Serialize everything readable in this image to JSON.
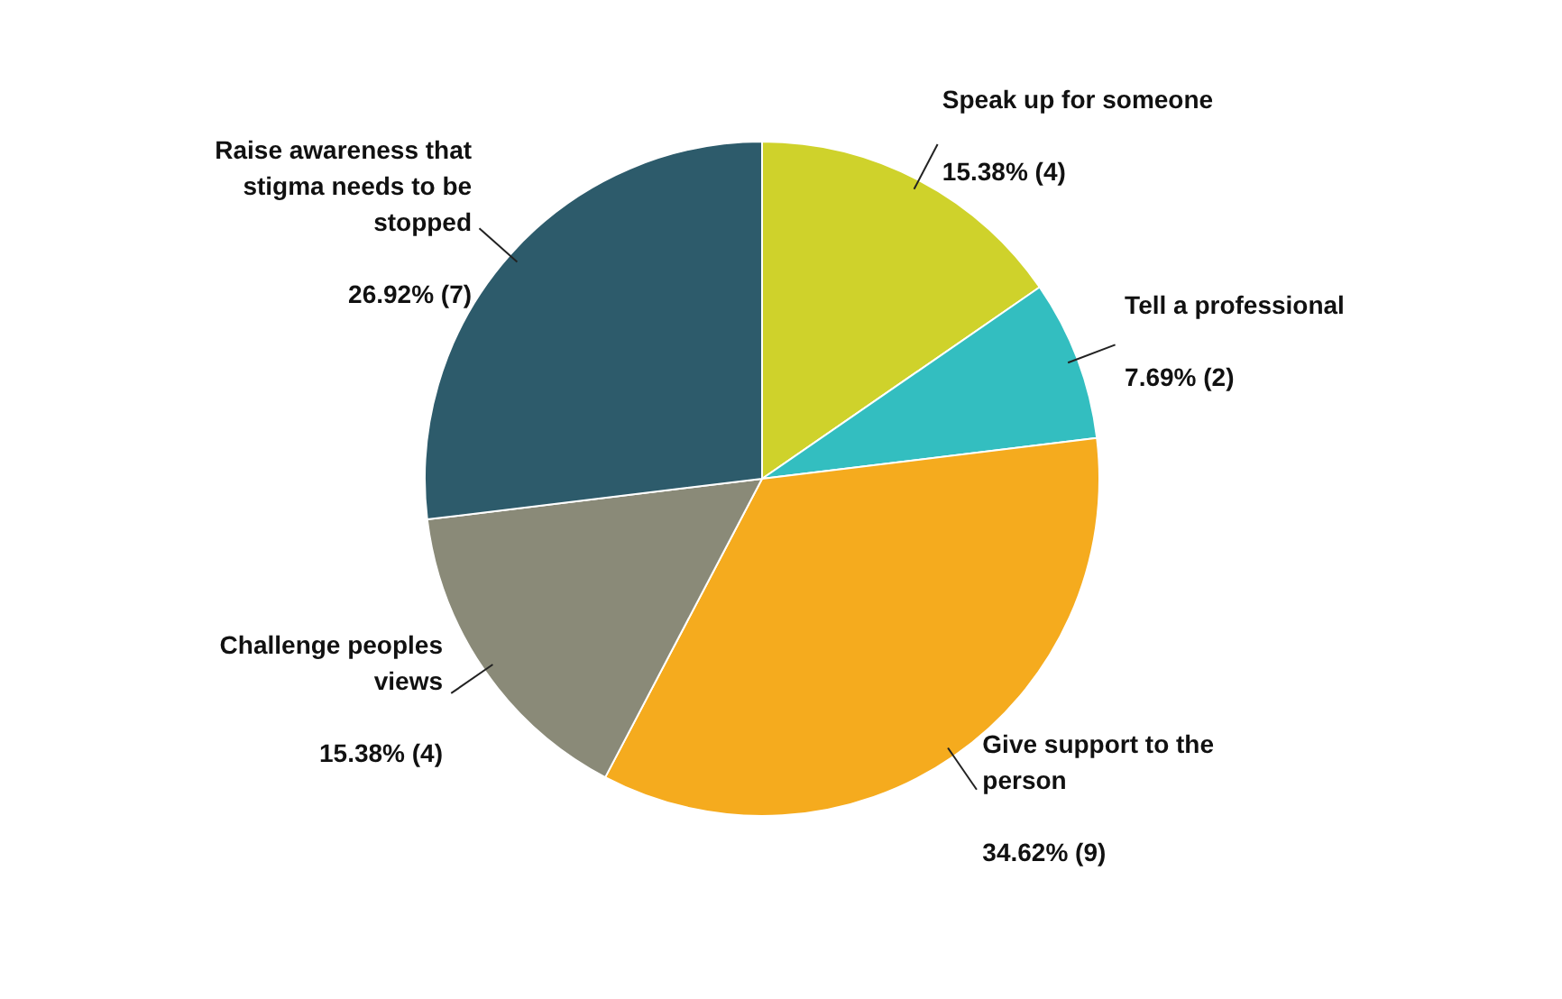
{
  "chart_data": {
    "type": "pie",
    "categories": [
      "Speak up for someone",
      "Tell a professional",
      "Give support to the person",
      "Challenge peoples views",
      "Raise awareness that stigma needs to be stopped"
    ],
    "values": [
      15.38,
      7.69,
      34.62,
      15.38,
      26.92
    ],
    "value_labels": [
      "15.38% (4)",
      "7.69% (2)",
      "34.62% (9)",
      "15.38% (4)",
      "26.92% (7)"
    ],
    "colors": [
      "#cfd22b",
      "#33bec0",
      "#f5ab1e",
      "#8a8a78",
      "#2d5b6b"
    ]
  }
}
